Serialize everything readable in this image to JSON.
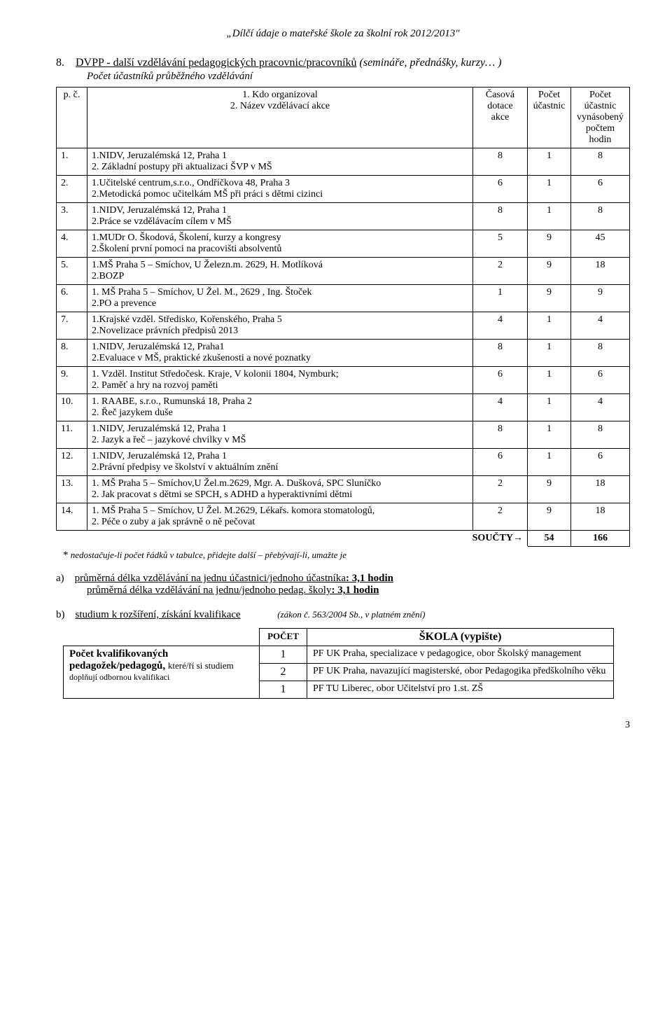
{
  "header": "„Dílčí údaje o mateřské škole za školní rok 2012/2013\"",
  "section8": {
    "num": "8.",
    "title": "DVPP - další vzdělávání pedagogických pracovnic/pracovníků",
    "tail": " (semináře, přednášky, kurzy… )",
    "subline": "Počet účastníků průběžného vzdělávání"
  },
  "tableHeader": {
    "pc": "p. č.",
    "left1": "1. Kdo organizoval",
    "left2": "2. Název vzdělávací akce",
    "dotace": "Časová dotace akce",
    "ucast": "Počet účastnic",
    "total": "Počet účastnic vynásobený počtem hodin"
  },
  "rows": [
    {
      "n": "1.",
      "l1": "1.NIDV, Jeruzalémská 12, Praha 1",
      "l2": "2. Základní postupy při aktualizaci ŠVP v MŠ",
      "c1": "8",
      "c2": "1",
      "c3": "8"
    },
    {
      "n": "2.",
      "l1": "1.Učitelské centrum,s.r.o., Ondříčkova 48, Praha 3",
      "l2": "2.Metodická pomoc učitelkám MŠ při práci s dětmi cizinci",
      "c1": "6",
      "c2": "1",
      "c3": "6"
    },
    {
      "n": "3.",
      "l1": "1.NIDV, Jeruzalémská 12, Praha 1",
      "l2": "2.Práce se vzdělávacím cílem v MŠ",
      "c1": "8",
      "c2": "1",
      "c3": "8"
    },
    {
      "n": "4.",
      "l1": "1.MUDr O. Škodová, Školení, kurzy a kongresy",
      "l2": "2.Školení první pomoci na pracovišti absolventů",
      "c1": "5",
      "c2": "9",
      "c3": "45"
    },
    {
      "n": "5.",
      "l1": "1.MŠ Praha 5 – Smíchov, U Železn.m. 2629, H. Motlíková",
      "l2": "2.BOZP",
      "c1": "2",
      "c2": "9",
      "c3": "18"
    },
    {
      "n": "6.",
      "l1": "1. MŠ Praha 5 – Smíchov, U Žel. M., 2629 , Ing. Štoček",
      "l2": "2.PO a prevence",
      "c1": "1",
      "c2": "9",
      "c3": "9"
    },
    {
      "n": "7.",
      "l1": "1.Krajské vzděl. Středisko, Kořenského, Praha 5",
      "l2": "2.Novelizace právních předpisů 2013",
      "c1": "4",
      "c2": "1",
      "c3": "4"
    },
    {
      "n": "8.",
      "l1": "1.NIDV, Jeruzalémská 12, Praha1",
      "l2": "2.Evaluace v MŠ, praktické zkušenosti a nové poznatky",
      "c1": "8",
      "c2": "1",
      "c3": "8"
    },
    {
      "n": "9.",
      "l1": "1. Vzděl. Institut Středočesk. Kraje, V kolonii 1804, Nymburk;",
      "l2": "2. Paměť a hry na rozvoj paměti",
      "c1": "6",
      "c2": "1",
      "c3": "6"
    },
    {
      "n": "10.",
      "l1": "1. RAABE, s.r.o., Rumunská 18, Praha 2",
      "l2": "2. Řeč jazykem duše",
      "c1": "4",
      "c2": "1",
      "c3": "4"
    },
    {
      "n": "11.",
      "l1": "1.NIDV, Jeruzalémská 12, Praha 1",
      "l2": "2. Jazyk a řeč – jazykové chvilky v MŠ",
      "c1": "8",
      "c2": "1",
      "c3": "8"
    },
    {
      "n": "12.",
      "l1": "1.NIDV, Jeruzalémská 12, Praha 1",
      "l2": "2.Právní předpisy ve školství v aktuálním znění",
      "c1": "6",
      "c2": "1",
      "c3": "6"
    },
    {
      "n": "13.",
      "l1": "1. MŠ Praha 5 – Smíchov,U Žel.m.2629, Mgr. A. Dušková, SPC Sluníčko",
      "l2": "2. Jak pracovat s dětmi se SPCH, s ADHD a hyperaktivními dětmi",
      "c1": "2",
      "c2": "9",
      "c3": "18"
    },
    {
      "n": "14.",
      "l1": "1. MŠ Praha 5 – Smíchov, U Žel. M.2629, Lékařs. komora stomatologů,",
      "l2": "2. Péče o zuby a jak správně o ně pečovat",
      "c1": "2",
      "c2": "9",
      "c3": "18"
    }
  ],
  "sum": {
    "label": "SOUČTY→",
    "v1": "54",
    "v2": "166"
  },
  "footnote": {
    "star": "*",
    "text": " nedostačuje-li počet řádků v tabulce, přidejte další – přebývají-li, umažte je"
  },
  "lista": {
    "marker": "a)",
    "line1_pre": "průměrná délka vzdělávání na jednu účastnici/jednoho účastníka",
    "line1_bold": ": 3,1 hodin",
    "line2_pre": "průměrná délka vzdělávání na jednu/jednoho pedag. školy",
    "line2_bold": ": 3,1 hodin"
  },
  "listb": {
    "marker": "b)",
    "title": "studium k rozšíření, získání kvalifikace",
    "tail": "(zákon č. 563/2004 Sb., v platném znění)"
  },
  "qualHeader": {
    "count": "POČET",
    "school": "ŠKOLA (vypište)"
  },
  "qualLeft": {
    "l1": "Počet kvalifikovaných",
    "l2a": "pedagožek/pedagogů, ",
    "l2b": "které/ří si studiem",
    "l3": "doplňují odbornou kvalifikaci"
  },
  "qualRows": [
    {
      "n": "1",
      "s": "PF UK Praha, specializace v pedagogice, obor Školský management"
    },
    {
      "n": "2",
      "s": "PF UK Praha, navazující magisterské,  obor Pedagogika předškolního věku"
    },
    {
      "n": "1",
      "s": "PF TU Liberec, obor Učitelství pro 1.st. ZŠ"
    }
  ],
  "pageNum": "3"
}
